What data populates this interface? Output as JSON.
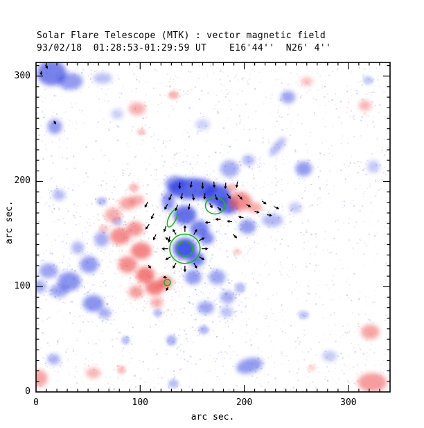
{
  "chart_data": {
    "type": "heatmap",
    "title": "Solar Flare Telescope (MTK) : vector magnetic field",
    "subtitle": "93/02/18  01:28:53-01:29:59 UT    E16'44''  N26' 4''",
    "xlabel": "arc sec.",
    "ylabel": "arc sec.",
    "xlim": [
      0,
      340
    ],
    "ylim": [
      0,
      313
    ],
    "xticks": [
      0,
      100,
      200,
      300
    ],
    "yticks": [
      0,
      100,
      200,
      300
    ],
    "minor_tick_step": 10,
    "grid": false,
    "legend": "none",
    "colors": {
      "positive_flux": "#ef4d4d",
      "negative_flux": "#2b3ae0",
      "positive_speckle": "#f49c9c",
      "negative_speckle": "#7b86ef",
      "contour": "#1db41d",
      "vector": "#000000",
      "frame": "#000000",
      "background": "#ffffff"
    },
    "blob_fields": [
      "x_arcsec",
      "y_arcsec",
      "rx_arcsec",
      "ry_arcsec",
      "intensity",
      "rot_deg"
    ],
    "negative_blobs": [
      [
        15,
        303,
        14,
        12,
        0.7,
        0
      ],
      [
        33,
        295,
        12,
        8,
        0.55,
        0
      ],
      [
        18,
        252,
        7,
        7,
        0.55,
        0
      ],
      [
        64,
        298,
        9,
        5,
        0.35,
        0
      ],
      [
        78,
        264,
        6,
        5,
        0.25,
        0
      ],
      [
        242,
        280,
        7,
        6,
        0.5,
        0
      ],
      [
        319,
        296,
        5,
        4,
        0.3,
        0
      ],
      [
        232,
        233,
        4,
        11,
        0.4,
        40
      ],
      [
        257,
        212,
        8,
        7,
        0.55,
        0
      ],
      [
        186,
        212,
        9,
        8,
        0.45,
        0
      ],
      [
        204,
        220,
        6,
        5,
        0.4,
        0
      ],
      [
        160,
        254,
        7,
        5,
        0.25,
        0
      ],
      [
        324,
        214,
        6,
        6,
        0.3,
        0
      ],
      [
        12,
        115,
        9,
        7,
        0.5,
        0
      ],
      [
        32,
        105,
        11,
        9,
        0.6,
        0
      ],
      [
        51,
        121,
        9,
        8,
        0.55,
        0
      ],
      [
        63,
        145,
        7,
        7,
        0.45,
        0
      ],
      [
        40,
        137,
        6,
        6,
        0.4,
        0
      ],
      [
        22,
        96,
        9,
        6,
        0.5,
        0
      ],
      [
        3,
        100,
        7,
        6,
        0.45,
        0
      ],
      [
        22,
        187,
        6,
        5,
        0.4,
        0
      ],
      [
        63,
        181,
        5,
        4,
        0.35,
        0
      ],
      [
        78,
        162,
        5,
        4,
        0.3,
        0
      ],
      [
        150,
        193,
        23,
        10,
        0.85,
        0
      ],
      [
        134,
        198,
        10,
        7,
        0.6,
        0
      ],
      [
        174,
        187,
        13,
        10,
        0.85,
        0
      ],
      [
        184,
        177,
        10,
        8,
        0.8,
        0
      ],
      [
        143,
        168,
        11,
        9,
        0.8,
        0
      ],
      [
        157,
        155,
        9,
        8,
        0.7,
        0
      ],
      [
        127,
        181,
        6,
        9,
        0.6,
        0
      ],
      [
        143,
        136,
        11,
        10,
        0.95,
        0
      ],
      [
        154,
        126,
        8,
        7,
        0.7,
        0
      ],
      [
        164,
        146,
        7,
        6,
        0.65,
        0
      ],
      [
        151,
        109,
        8,
        7,
        0.55,
        0
      ],
      [
        174,
        109,
        8,
        7,
        0.5,
        0
      ],
      [
        184,
        90,
        7,
        6,
        0.45,
        0
      ],
      [
        196,
        99,
        5,
        5,
        0.35,
        0
      ],
      [
        203,
        157,
        8,
        7,
        0.55,
        0
      ],
      [
        227,
        163,
        10,
        6,
        0.4,
        0
      ],
      [
        249,
        175,
        6,
        5,
        0.3,
        0
      ],
      [
        55,
        84,
        10,
        8,
        0.6,
        0
      ],
      [
        66,
        75,
        6,
        5,
        0.45,
        0
      ],
      [
        117,
        75,
        4,
        4,
        0.35,
        0
      ],
      [
        130,
        49,
        5,
        5,
        0.4,
        0
      ],
      [
        86,
        49,
        4,
        4,
        0.35,
        0
      ],
      [
        17,
        31,
        6,
        5,
        0.45,
        0
      ],
      [
        205,
        25,
        13,
        7,
        0.55,
        -15
      ],
      [
        163,
        80,
        8,
        6,
        0.5,
        0
      ],
      [
        161,
        59,
        5,
        4,
        0.4,
        0
      ],
      [
        183,
        76,
        6,
        5,
        0.35,
        0
      ],
      [
        282,
        34,
        7,
        5,
        0.3,
        0
      ],
      [
        132,
        8,
        5,
        4,
        0.35,
        0
      ],
      [
        257,
        73,
        5,
        4,
        0.3,
        0
      ]
    ],
    "positive_blobs": [
      [
        74,
        168,
        8,
        7,
        0.5,
        0
      ],
      [
        88,
        179,
        8,
        6,
        0.55,
        0
      ],
      [
        97,
        182,
        7,
        5,
        0.5,
        0
      ],
      [
        94,
        194,
        5,
        4,
        0.4,
        0
      ],
      [
        81,
        148,
        10,
        8,
        0.7,
        0
      ],
      [
        95,
        155,
        8,
        7,
        0.65,
        0
      ],
      [
        101,
        134,
        10,
        8,
        0.75,
        0
      ],
      [
        88,
        121,
        9,
        8,
        0.7,
        0
      ],
      [
        105,
        111,
        9,
        8,
        0.8,
        0
      ],
      [
        114,
        99,
        9,
        7,
        0.8,
        0
      ],
      [
        124,
        104,
        7,
        6,
        0.75,
        0
      ],
      [
        96,
        95,
        7,
        6,
        0.6,
        0
      ],
      [
        116,
        85,
        6,
        5,
        0.5,
        0
      ],
      [
        65,
        155,
        5,
        4,
        0.3,
        0
      ],
      [
        196,
        181,
        11,
        9,
        0.7,
        0
      ],
      [
        210,
        175,
        7,
        5,
        0.5,
        0
      ],
      [
        188,
        194,
        5,
        4,
        0.4,
        0
      ],
      [
        193,
        133,
        4,
        3,
        0.3,
        0
      ],
      [
        97,
        269,
        8,
        6,
        0.5,
        0
      ],
      [
        132,
        282,
        5,
        4,
        0.45,
        0
      ],
      [
        101,
        247,
        4,
        3,
        0.35,
        0
      ],
      [
        260,
        295,
        6,
        4,
        0.4,
        0
      ],
      [
        316,
        272,
        6,
        5,
        0.45,
        0
      ],
      [
        321,
        57,
        9,
        7,
        0.55,
        0
      ],
      [
        323,
        9,
        14,
        9,
        0.6,
        0
      ],
      [
        55,
        18,
        7,
        5,
        0.45,
        0
      ],
      [
        82,
        21,
        4,
        4,
        0.4,
        0
      ],
      [
        3,
        13,
        8,
        8,
        0.55,
        0
      ],
      [
        265,
        23,
        4,
        3,
        0.25,
        0
      ]
    ],
    "contour_fields": [
      "x_arcsec",
      "y_arcsec",
      "rx_arcsec",
      "ry_arcsec",
      "rot_deg"
    ],
    "contours": [
      [
        172,
        177,
        9.3,
        8,
        0
      ],
      [
        131,
        165,
        3.5,
        9,
        25
      ],
      [
        143,
        136,
        14.6,
        14,
        0
      ],
      [
        143,
        136,
        7.5,
        7,
        0
      ],
      [
        126,
        104,
        3,
        3,
        0
      ]
    ],
    "vector_fields": [
      "x_arcsec",
      "y_arcsec",
      "angle_deg_ccw_from_east",
      "length_arcsec"
    ],
    "vectors": [
      [
        138,
        196,
        -95,
        5
      ],
      [
        149,
        197,
        -100,
        5
      ],
      [
        160,
        196,
        -90,
        5
      ],
      [
        171,
        197,
        -85,
        5
      ],
      [
        182,
        196,
        -95,
        5
      ],
      [
        193,
        197,
        -100,
        5
      ],
      [
        129,
        185,
        -115,
        5
      ],
      [
        140,
        186,
        -100,
        5
      ],
      [
        151,
        185,
        -80,
        5
      ],
      [
        162,
        186,
        -95,
        5
      ],
      [
        173,
        185,
        -70,
        5
      ],
      [
        185,
        186,
        -55,
        5
      ],
      [
        196,
        185,
        -45,
        5
      ],
      [
        125,
        176,
        -120,
        5
      ],
      [
        135,
        175,
        -110,
        5
      ],
      [
        147,
        176,
        -100,
        5
      ],
      [
        168,
        177,
        -60,
        4
      ],
      [
        176,
        174,
        -45,
        4
      ],
      [
        106,
        178,
        -120,
        5
      ],
      [
        112,
        167,
        -115,
        5
      ],
      [
        107,
        157,
        -125,
        5
      ],
      [
        114,
        147,
        -115,
        5
      ],
      [
        124,
        155,
        -110,
        5
      ],
      [
        128,
        145,
        -100,
        5
      ],
      [
        175,
        164,
        180,
        4
      ],
      [
        186,
        162,
        175,
        4
      ],
      [
        165,
        161,
        185,
        4
      ],
      [
        197,
        166,
        170,
        4
      ],
      [
        204,
        177,
        -30,
        4
      ],
      [
        212,
        171,
        -20,
        4
      ],
      [
        219,
        180,
        -35,
        4
      ],
      [
        224,
        168,
        -10,
        4
      ],
      [
        231,
        175,
        -25,
        4
      ],
      [
        162,
        136,
        0,
        5
      ],
      [
        159,
        145,
        30,
        5
      ],
      [
        153,
        152,
        60,
        5
      ],
      [
        143,
        155,
        90,
        5
      ],
      [
        133,
        152,
        120,
        5
      ],
      [
        127,
        145,
        150,
        5
      ],
      [
        124,
        136,
        180,
        5
      ],
      [
        127,
        127,
        210,
        5
      ],
      [
        133,
        120,
        240,
        5
      ],
      [
        143,
        117,
        270,
        5
      ],
      [
        153,
        120,
        300,
        5
      ],
      [
        159,
        127,
        330,
        5
      ],
      [
        10,
        309,
        -60,
        3
      ],
      [
        5,
        303,
        -90,
        3
      ],
      [
        18,
        256,
        -60,
        3
      ],
      [
        109,
        119,
        -50,
        3
      ],
      [
        191,
        148,
        -45,
        4
      ],
      [
        124,
        109,
        180,
        3
      ],
      [
        126,
        98,
        -120,
        3
      ]
    ],
    "noise": {
      "seed": 20930218,
      "uniform_count": 1800,
      "cluster_factor": 40,
      "negative_fraction": 0.72
    }
  }
}
